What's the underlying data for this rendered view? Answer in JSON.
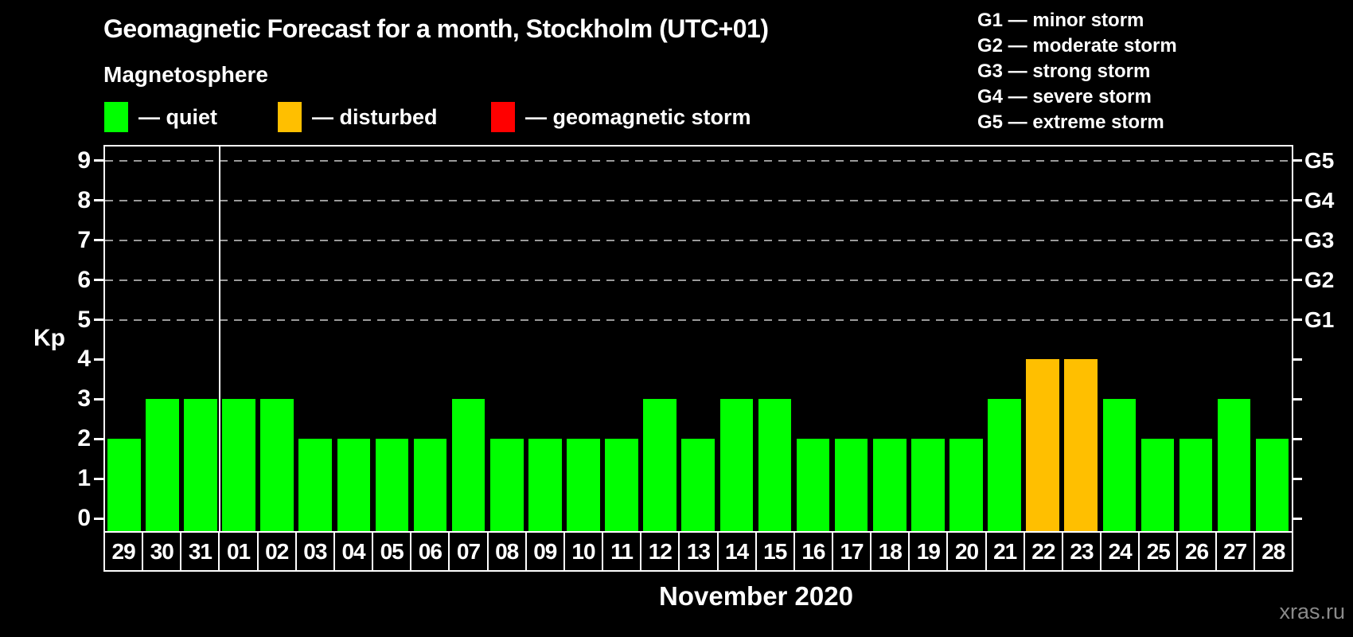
{
  "title": "Geomagnetic Forecast for a month, Stockholm (UTC+01)",
  "subtitle": "Magnetosphere",
  "watermark": "xras.ru",
  "legend": {
    "items": [
      {
        "status": "quiet",
        "label": "— quiet",
        "color": "#00ff00"
      },
      {
        "status": "disturbed",
        "label": "— disturbed",
        "color": "#ffbf00"
      },
      {
        "status": "storm",
        "label": "— geomagnetic storm",
        "color": "#ff0000"
      }
    ]
  },
  "g_scale_legend": [
    "G1 — minor storm",
    "G2 — moderate storm",
    "G3 — strong storm",
    "G4 — severe storm",
    "G5 — extreme storm"
  ],
  "chart_data": {
    "type": "bar",
    "title": "Geomagnetic Forecast for a month, Stockholm (UTC+01)",
    "xlabel": "November 2020",
    "ylabel": "Kp",
    "ylim": [
      0,
      9
    ],
    "grid": "dashed horizontal lines at Kp 5-9 only",
    "legend_position": "top",
    "categories": [
      "29",
      "30",
      "31",
      "01",
      "02",
      "03",
      "04",
      "05",
      "06",
      "07",
      "08",
      "09",
      "10",
      "11",
      "12",
      "13",
      "14",
      "15",
      "16",
      "17",
      "18",
      "19",
      "20",
      "21",
      "22",
      "23",
      "24",
      "25",
      "26",
      "27",
      "28"
    ],
    "values": [
      2,
      3,
      3,
      3,
      3,
      2,
      2,
      2,
      2,
      3,
      2,
      2,
      2,
      2,
      3,
      2,
      3,
      3,
      2,
      2,
      2,
      2,
      2,
      3,
      4,
      4,
      3,
      2,
      2,
      3,
      2
    ],
    "month_separator_after_index": 2,
    "status_colors": {
      "quiet": "#00ff00",
      "disturbed": "#ffbf00",
      "storm": "#ff0000"
    },
    "status_rule": {
      "quiet_max_kp": 3,
      "disturbed_max_kp": 4
    },
    "right_axis_labels": [
      {
        "kp": 5,
        "label": "G1"
      },
      {
        "kp": 6,
        "label": "G2"
      },
      {
        "kp": 7,
        "label": "G3"
      },
      {
        "kp": 8,
        "label": "G4"
      },
      {
        "kp": 9,
        "label": "G5"
      }
    ]
  }
}
